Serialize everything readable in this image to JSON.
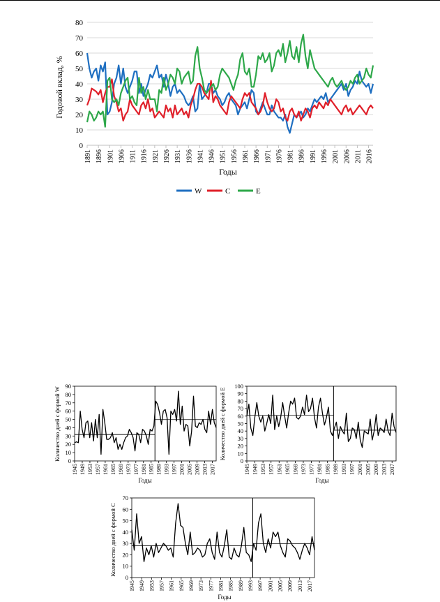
{
  "chart_data": [
    {
      "type": "line",
      "xlabel": "Годы",
      "ylabel": "Годовой вклад, %",
      "ylim": [
        0,
        80
      ],
      "yticks": [
        0,
        10,
        20,
        30,
        40,
        50,
        60,
        70,
        80
      ],
      "xlim": [
        1891,
        2018
      ],
      "xticks": [
        1891,
        1896,
        1901,
        1906,
        1911,
        1916,
        1921,
        1926,
        1931,
        1936,
        1941,
        1946,
        1951,
        1956,
        1961,
        1966,
        1971,
        1976,
        1981,
        1986,
        1991,
        1996,
        2001,
        2006,
        2011,
        2016
      ],
      "grid": true,
      "legend": "bottom",
      "series": [
        {
          "name": "W",
          "color": "#1f6fc1",
          "values": [
            60,
            50,
            44,
            48,
            50,
            42,
            52,
            48,
            54,
            20,
            22,
            28,
            40,
            44,
            52,
            40,
            50,
            38,
            34,
            38,
            42,
            48,
            48,
            34,
            40,
            32,
            36,
            40,
            46,
            44,
            48,
            52,
            44,
            46,
            38,
            46,
            40,
            32,
            38,
            40,
            34,
            36,
            34,
            32,
            28,
            26,
            28,
            32,
            22,
            24,
            40,
            30,
            32,
            34,
            40,
            40,
            34,
            36,
            32,
            30,
            26,
            28,
            32,
            34,
            30,
            28,
            26,
            20,
            24,
            26,
            28,
            24,
            30,
            36,
            34,
            22,
            20,
            24,
            28,
            24,
            20,
            20,
            26,
            22,
            20,
            18,
            18,
            16,
            20,
            12,
            8,
            14,
            20,
            18,
            20,
            22,
            18,
            20,
            24,
            22,
            26,
            30,
            28,
            30,
            32,
            30,
            34,
            28,
            30,
            32,
            34,
            36,
            38,
            40,
            36,
            40,
            32,
            36,
            38,
            42,
            40,
            48,
            42,
            40,
            38,
            40,
            34,
            40
          ]
        },
        {
          "name": "C",
          "color": "#e0202a",
          "values": [
            26,
            30,
            37,
            36,
            35,
            33,
            36,
            28,
            34,
            38,
            38,
            43,
            32,
            28,
            22,
            24,
            16,
            20,
            22,
            30,
            26,
            24,
            22,
            20,
            26,
            28,
            24,
            30,
            22,
            24,
            18,
            20,
            22,
            20,
            18,
            26,
            22,
            24,
            18,
            26,
            20,
            22,
            24,
            20,
            22,
            18,
            26,
            30,
            36,
            40,
            40,
            38,
            34,
            32,
            30,
            42,
            28,
            32,
            30,
            26,
            24,
            22,
            20,
            28,
            32,
            30,
            28,
            26,
            24,
            30,
            34,
            32,
            34,
            28,
            26,
            24,
            20,
            22,
            26,
            34,
            28,
            24,
            22,
            24,
            30,
            28,
            22,
            24,
            18,
            16,
            22,
            24,
            20,
            18,
            22,
            16,
            20,
            24,
            22,
            18,
            24,
            26,
            24,
            28,
            26,
            24,
            28,
            26,
            30,
            28,
            26,
            24,
            22,
            20,
            24,
            26,
            22,
            24,
            20,
            22,
            24,
            26,
            24,
            22,
            20,
            24,
            26,
            24
          ]
        },
        {
          "name": "E",
          "color": "#2ea84a",
          "values": [
            15,
            22,
            20,
            16,
            18,
            22,
            20,
            22,
            12,
            42,
            44,
            30,
            28,
            30,
            26,
            34,
            38,
            42,
            44,
            30,
            32,
            28,
            26,
            44,
            34,
            38,
            30,
            36,
            30,
            30,
            30,
            22,
            36,
            34,
            44,
            36,
            40,
            46,
            44,
            40,
            50,
            48,
            40,
            44,
            46,
            48,
            40,
            42,
            58,
            64,
            50,
            44,
            36,
            34,
            36,
            38,
            40,
            36,
            38,
            46,
            50,
            48,
            46,
            44,
            40,
            36,
            42,
            46,
            56,
            60,
            48,
            46,
            50,
            38,
            38,
            46,
            58,
            56,
            60,
            54,
            56,
            60,
            48,
            52,
            60,
            62,
            58,
            66,
            54,
            60,
            68,
            58,
            56,
            64,
            54,
            66,
            72,
            58,
            50,
            62,
            56,
            50,
            48,
            46,
            44,
            42,
            40,
            38,
            42,
            44,
            40,
            38,
            40,
            42,
            38,
            36,
            38,
            42,
            40,
            44,
            46,
            40,
            42,
            44,
            50,
            46,
            44,
            52
          ]
        }
      ]
    },
    {
      "type": "line",
      "xlabel": "Годы",
      "ylabel": "Количество дней с формой W",
      "ylim": [
        0,
        90
      ],
      "yticks": [
        0,
        10,
        20,
        30,
        40,
        50,
        60,
        70,
        80,
        90
      ],
      "xlim": [
        1945,
        2019
      ],
      "xticks": [
        1945,
        1949,
        1953,
        1957,
        1961,
        1965,
        1969,
        1973,
        1977,
        1981,
        1985,
        1989,
        1993,
        1997,
        2001,
        2005,
        2009,
        2013,
        2017
      ],
      "split_year": 1987,
      "color": "#000000",
      "values": [
        22,
        23,
        22,
        60,
        38,
        28,
        46,
        48,
        28,
        46,
        24,
        50,
        28,
        56,
        8,
        62,
        46,
        26,
        26,
        28,
        34,
        22,
        28,
        14,
        20,
        14,
        22,
        28,
        30,
        38,
        34,
        28,
        12,
        34,
        32,
        22,
        38,
        36,
        30,
        20,
        38,
        36,
        42,
        72,
        68,
        58,
        44,
        60,
        62,
        52,
        8,
        60,
        56,
        62,
        48,
        84,
        44,
        66,
        36,
        44,
        42,
        18,
        36,
        78,
        42,
        40,
        46,
        44,
        50,
        38,
        34,
        60,
        44,
        62,
        46,
        40
      ]
    },
    {
      "type": "line",
      "xlabel": "Годы",
      "ylabel": "Количество дней с формой E",
      "ylim": [
        0,
        100
      ],
      "yticks": [
        0,
        10,
        20,
        30,
        40,
        50,
        60,
        70,
        80,
        90,
        100
      ],
      "xlim": [
        1945,
        2019
      ],
      "xticks": [
        1945,
        1949,
        1953,
        1957,
        1961,
        1965,
        1969,
        1973,
        1977,
        1981,
        1985,
        1989,
        1993,
        1997,
        2001,
        2005,
        2009,
        2013,
        2017
      ],
      "split_year": 1988,
      "color": "#000000",
      "values": [
        60,
        76,
        44,
        34,
        58,
        78,
        60,
        52,
        60,
        40,
        50,
        62,
        50,
        88,
        42,
        60,
        46,
        58,
        78,
        60,
        44,
        64,
        80,
        76,
        84,
        58,
        56,
        60,
        72,
        62,
        88,
        66,
        70,
        84,
        58,
        44,
        72,
        84,
        64,
        48,
        58,
        72,
        40,
        34,
        44,
        52,
        30,
        46,
        40,
        36,
        64,
        26,
        30,
        44,
        42,
        30,
        52,
        28,
        18,
        40,
        38,
        36,
        56,
        28,
        40,
        62,
        34,
        44,
        42,
        38,
        56,
        40,
        34,
        64,
        46,
        38
      ]
    },
    {
      "type": "line",
      "xlabel": "Годы",
      "ylabel": "Количество дней с формой С",
      "ylim": [
        0,
        70
      ],
      "yticks": [
        0,
        10,
        20,
        30,
        40,
        50,
        60,
        70
      ],
      "xlim": [
        1945,
        2019
      ],
      "xticks": [
        1945,
        1949,
        1953,
        1957,
        1961,
        1965,
        1969,
        1973,
        1977,
        1981,
        1985,
        1989,
        1993,
        1997,
        2001,
        2005,
        2009,
        2013,
        2017
      ],
      "split_year": 1994,
      "color": "#000000",
      "values": [
        42,
        24,
        56,
        30,
        36,
        14,
        26,
        20,
        28,
        18,
        30,
        22,
        26,
        30,
        28,
        24,
        26,
        18,
        48,
        65,
        46,
        44,
        30,
        20,
        40,
        20,
        22,
        26,
        24,
        18,
        20,
        30,
        34,
        22,
        16,
        40,
        22,
        18,
        28,
        42,
        18,
        16,
        26,
        20,
        18,
        28,
        44,
        22,
        20,
        14,
        30,
        24,
        48,
        56,
        30,
        22,
        34,
        26,
        40,
        36,
        40,
        28,
        22,
        18,
        34,
        32,
        28,
        26,
        22,
        16,
        24,
        30,
        26,
        20,
        36,
        24
      ]
    }
  ]
}
